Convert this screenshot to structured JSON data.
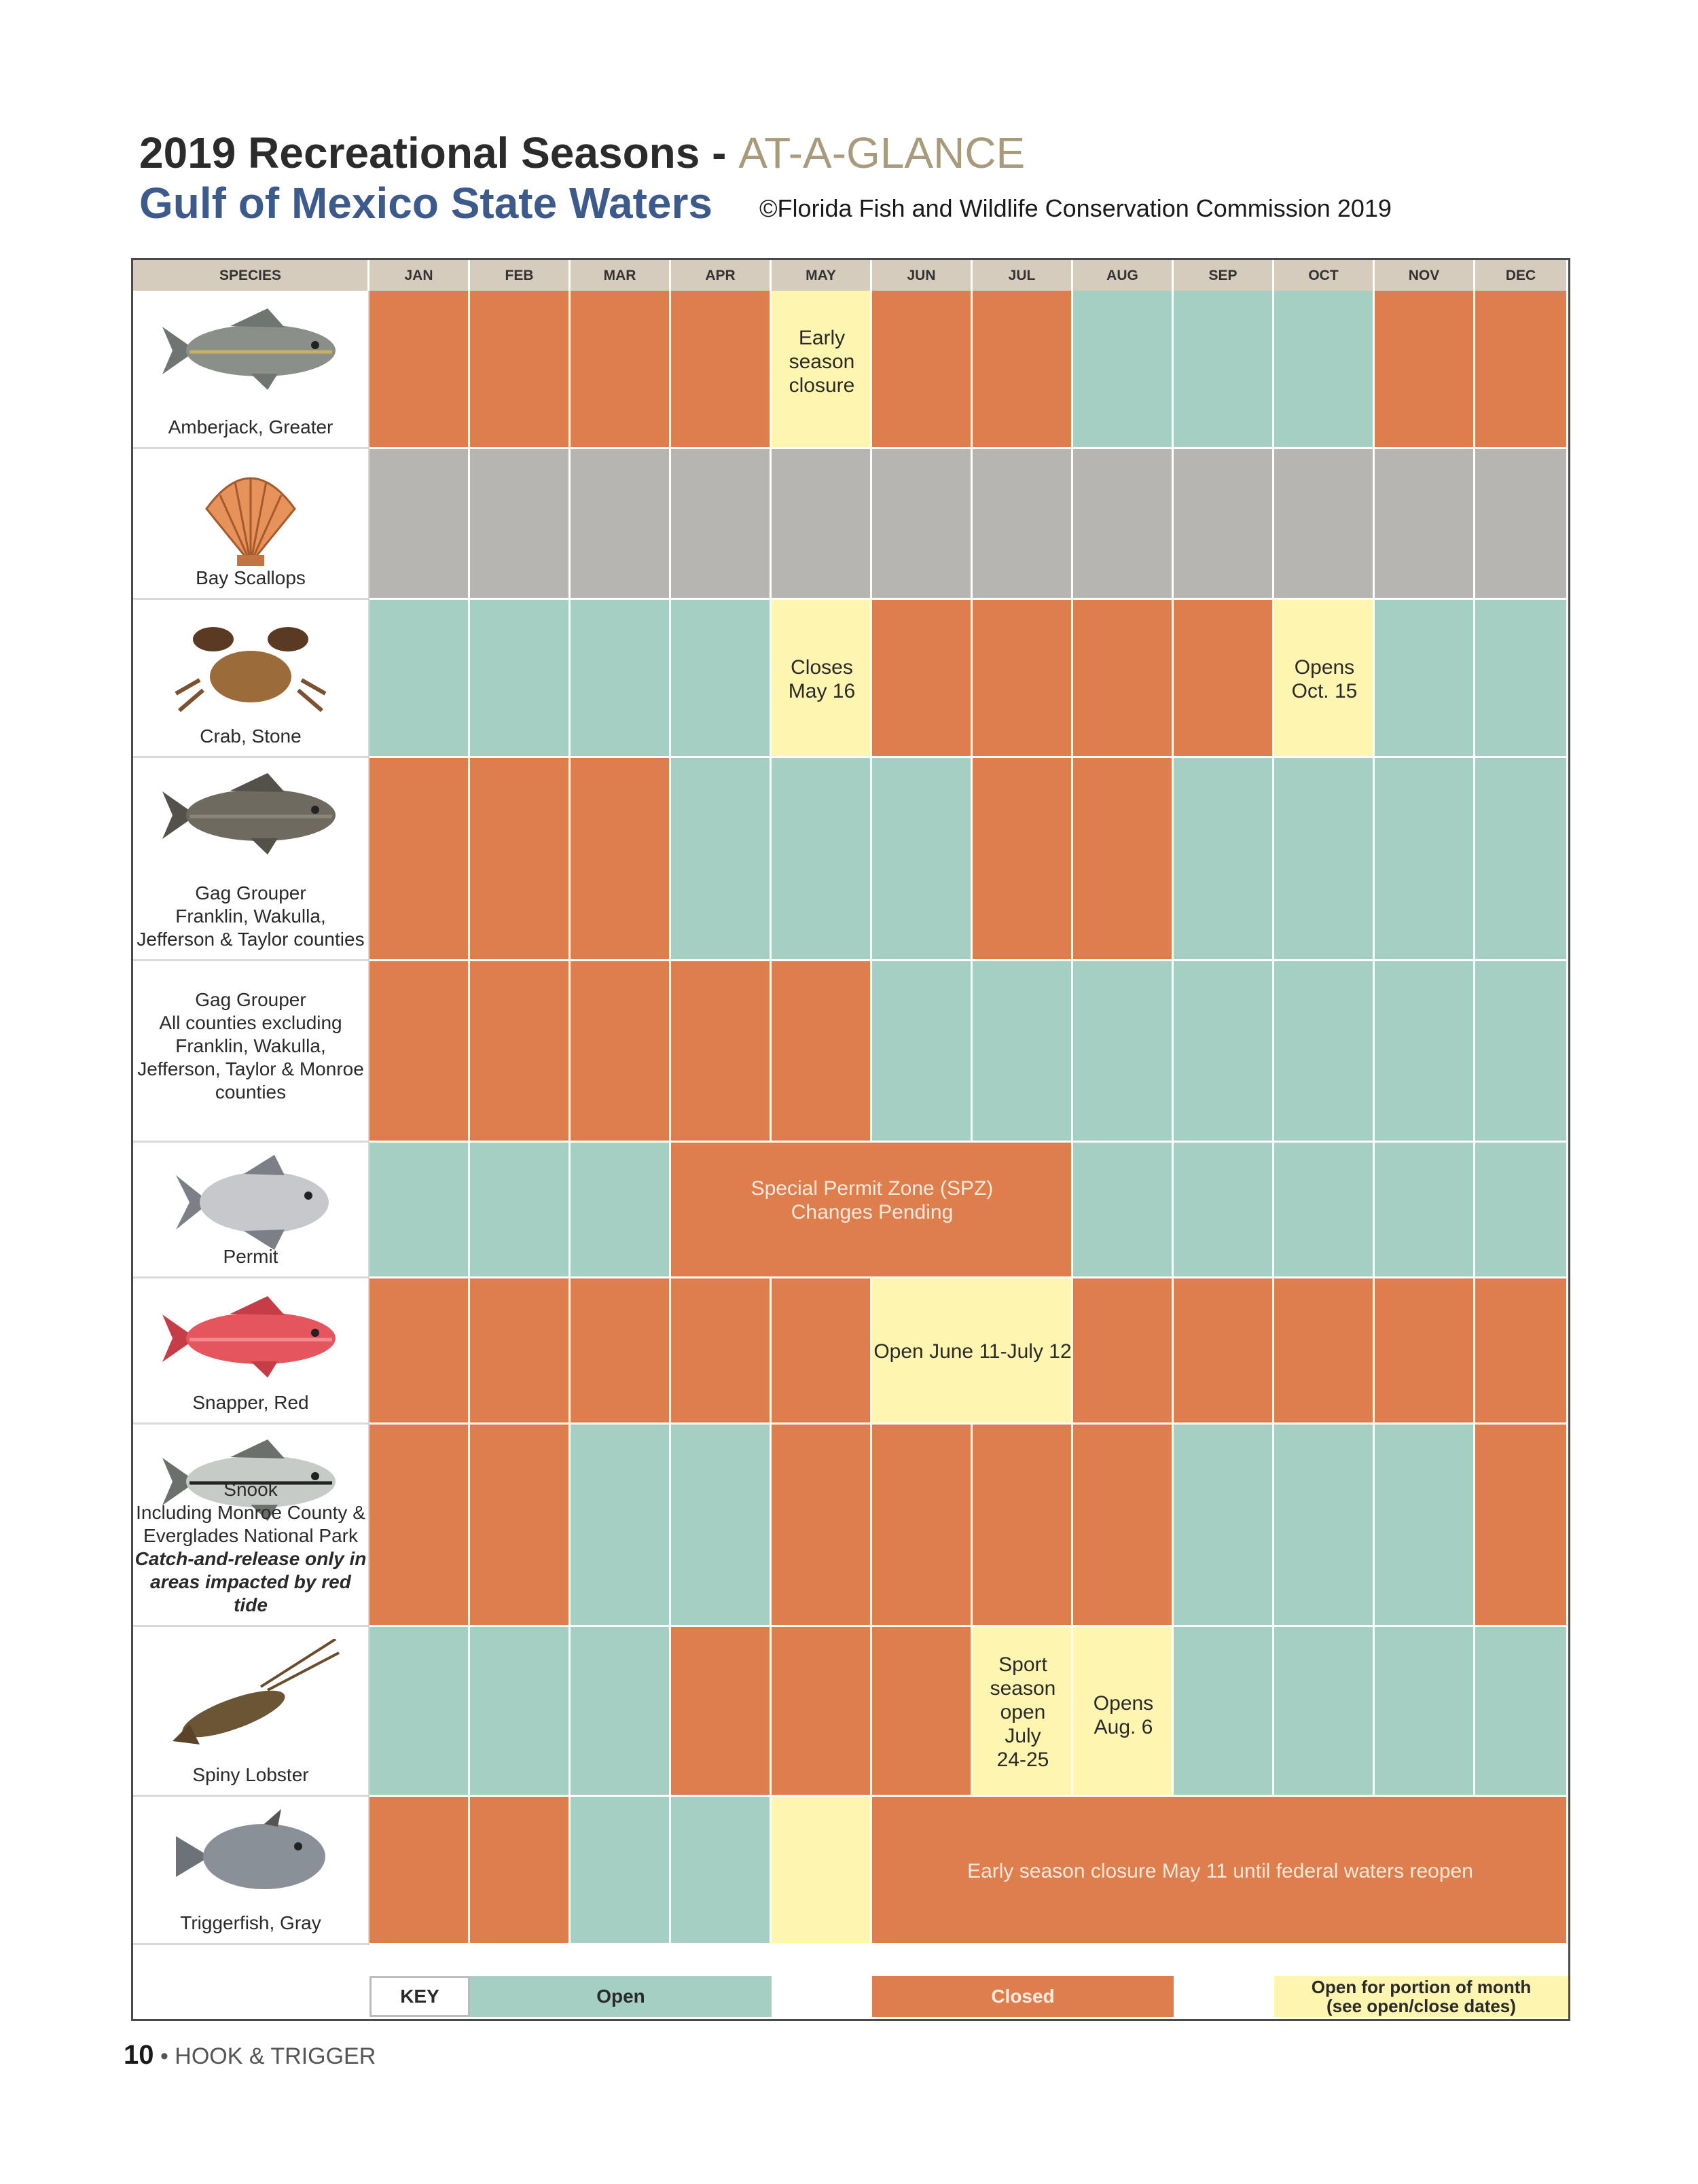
{
  "header": {
    "title_main": "2019 Recreational Seasons - ",
    "title_suffix": "AT-A-GLANCE",
    "subtitle": "Gulf of Mexico State Waters",
    "copyright": "©Florida Fish and Wildlife Conservation Commission 2019"
  },
  "table": {
    "species_header": "SPECIES",
    "months": [
      "JAN",
      "FEB",
      "MAR",
      "APR",
      "MAY",
      "JUN",
      "JUL",
      "AUG",
      "SEP",
      "OCT",
      "NOV",
      "DEC"
    ],
    "rows": [
      {
        "icon": "amberjack-icon",
        "label": [
          "Amberjack, Greater"
        ],
        "cells": [
          "closed",
          "closed",
          "closed",
          "closed",
          "partial",
          "closed",
          "closed",
          "open",
          "open",
          "open",
          "closed",
          "closed"
        ]
      },
      {
        "icon": "scallop-icon",
        "label": [
          "Bay Scallops"
        ],
        "cells": [
          "grey",
          "grey",
          "grey",
          "grey",
          "grey",
          "grey",
          "grey",
          "grey",
          "grey",
          "grey",
          "grey",
          "grey"
        ]
      },
      {
        "icon": "stone-crab-icon",
        "label": [
          "Crab, Stone"
        ],
        "cells": [
          "open",
          "open",
          "open",
          "open",
          "partial",
          "closed",
          "closed",
          "closed",
          "closed",
          "partial",
          "open",
          "open"
        ]
      },
      {
        "icon": "gag-grouper-icon",
        "label": [
          "Gag Grouper",
          "Franklin, Wakulla,",
          "Jefferson & Taylor counties"
        ],
        "cells": [
          "closed",
          "closed",
          "closed",
          "open",
          "open",
          "open",
          "closed",
          "closed",
          "open",
          "open",
          "open",
          "open"
        ]
      },
      {
        "icon": "",
        "label": [
          "Gag Grouper",
          "All counties excluding",
          "Franklin, Wakulla,",
          "Jefferson, Taylor & Monroe",
          "counties"
        ],
        "cells": [
          "closed",
          "closed",
          "closed",
          "closed",
          "closed",
          "open",
          "open",
          "open",
          "open",
          "open",
          "open",
          "open"
        ]
      },
      {
        "icon": "permit-icon",
        "label": [
          "Permit"
        ],
        "cells": [
          "open",
          "open",
          "open",
          "closed",
          "closed",
          "closed",
          "closed",
          "open",
          "open",
          "open",
          "open",
          "open"
        ]
      },
      {
        "icon": "red-snapper-icon",
        "label": [
          "Snapper, Red"
        ],
        "cells": [
          "closed",
          "closed",
          "closed",
          "closed",
          "closed",
          "partial",
          "partial",
          "closed",
          "closed",
          "closed",
          "closed",
          "closed"
        ]
      },
      {
        "icon": "snook-icon",
        "label": [
          "Snook",
          "Including Monroe County &",
          "Everglades National Park",
          "Catch-and-release only in",
          "areas impacted by red tide"
        ],
        "cells": [
          "closed",
          "closed",
          "open",
          "open",
          "closed",
          "closed",
          "closed",
          "closed",
          "open",
          "open",
          "open",
          "closed"
        ]
      },
      {
        "icon": "spiny-lobster-icon",
        "label": [
          "Spiny Lobster"
        ],
        "cells": [
          "open",
          "open",
          "open",
          "closed",
          "closed",
          "closed",
          "partial",
          "partial",
          "open",
          "open",
          "open",
          "open"
        ]
      },
      {
        "icon": "triggerfish-icon",
        "label": [
          "Triggerfish, Gray"
        ],
        "cells": [
          "closed",
          "closed",
          "open",
          "open",
          "partial",
          "closed",
          "closed",
          "closed",
          "closed",
          "closed",
          "closed",
          "closed"
        ]
      }
    ],
    "notes": {
      "amberjack_may": "Early\nseason\nclosure",
      "crab_may": "Closes\nMay 16",
      "crab_oct": "Opens\nOct. 15",
      "permit_spz": "Special Permit Zone (SPZ)\nChanges Pending",
      "snapper_open": "Open June 11-July 12",
      "lobster_jul": "Sport\nseason\nopen\nJuly\n24-25",
      "lobster_aug": "Opens\nAug. 6",
      "trigger_closure": "Early season closure May 11 until federal waters reopen"
    }
  },
  "key": {
    "title": "KEY",
    "open": "Open",
    "closed": "Closed",
    "partial": "Open for portion of month\n(see open/close dates)"
  },
  "colors": {
    "open": "#a5cfc3",
    "closed": "#de7e4d",
    "partial": "#fdf5b0",
    "grey": "#b6b5b1",
    "header": "#d6ccbd"
  },
  "footer": {
    "page_number": "10",
    "bullet": " • ",
    "publication": "HOOK & TRIGGER"
  }
}
